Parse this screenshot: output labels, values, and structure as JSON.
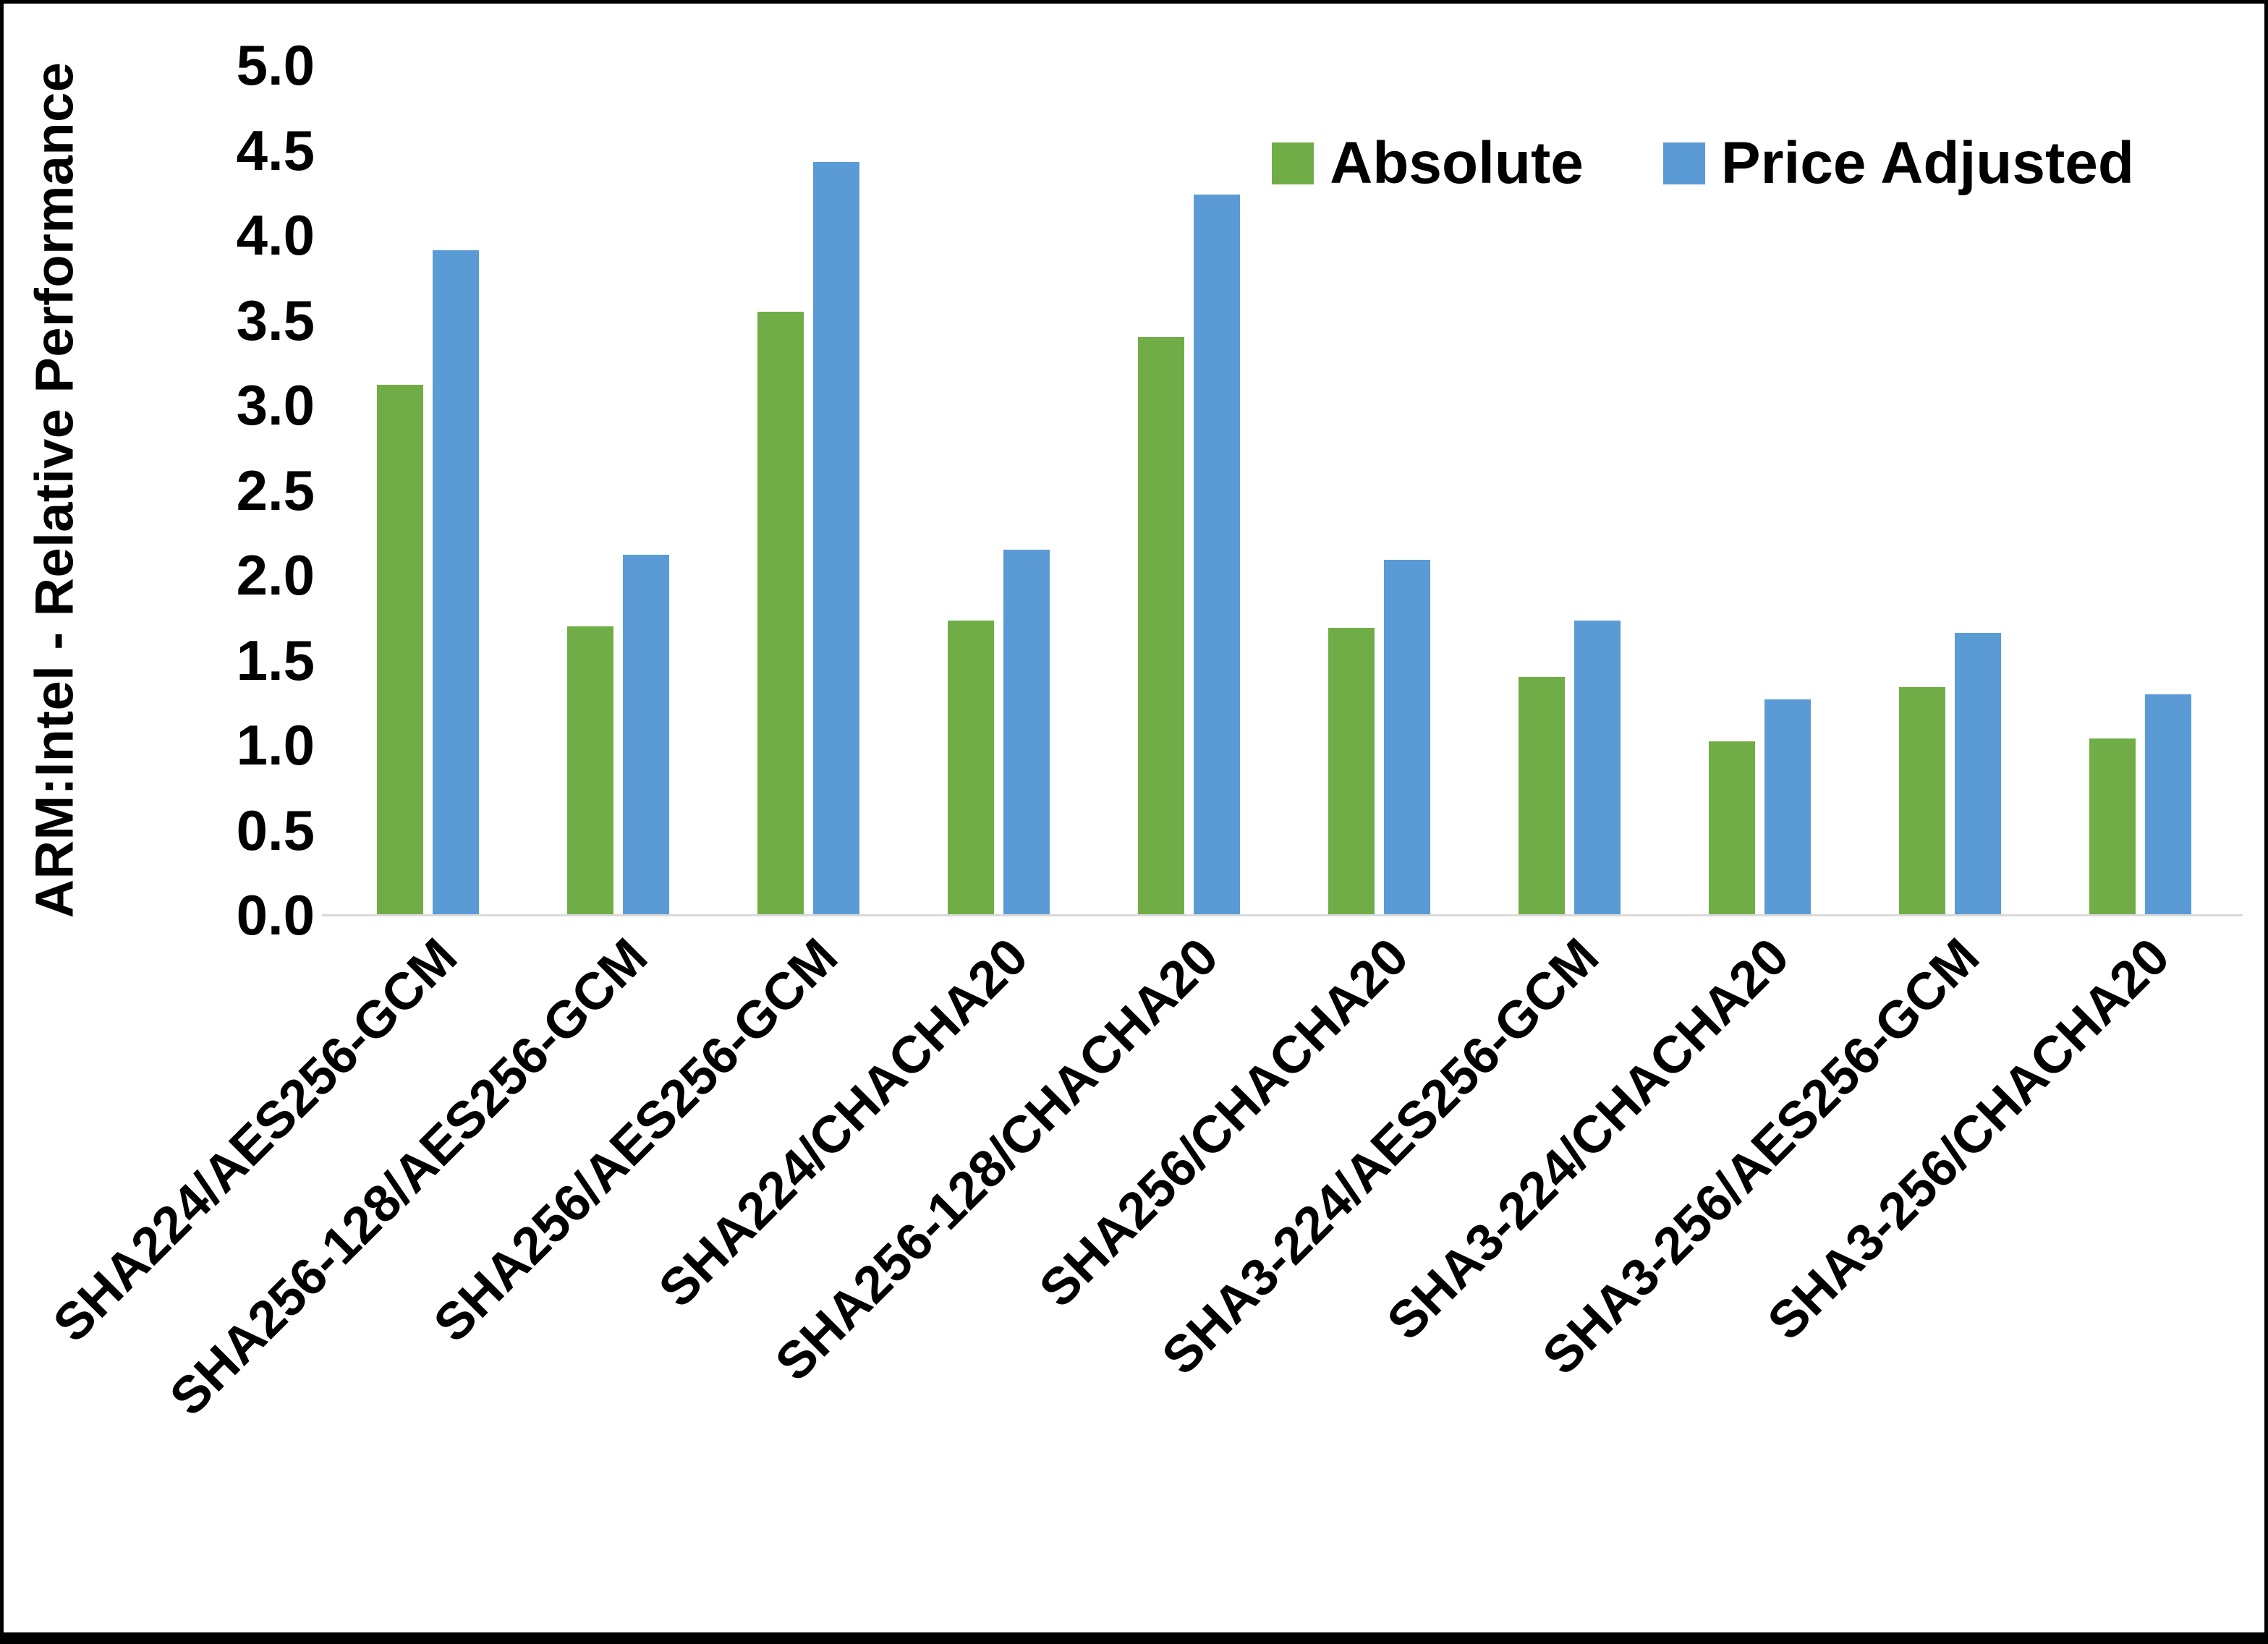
{
  "chart_data": {
    "type": "bar",
    "title": "",
    "xlabel": "",
    "ylabel": "ARM:Intel - Relative Performance",
    "ylim": [
      0,
      5
    ],
    "ytick_step": 0.5,
    "yticks": [
      "0.0",
      "0.5",
      "1.0",
      "1.5",
      "2.0",
      "2.5",
      "3.0",
      "3.5",
      "4.0",
      "4.5",
      "5.0"
    ],
    "grid": false,
    "legend_position": "top-right",
    "categories": [
      "SHA224/AES256-GCM",
      "SHA256-128/AES256-GCM",
      "SHA256/AES256-GCM",
      "SHA224/CHACHA20",
      "SHA256-128/CHACHA20",
      "SHA256/CHACHA20",
      "SHA3-224/AES256-GCM",
      "SHA3-224/CHACHA20",
      "SHA3-256/AES256-GCM",
      "SHA3-256/CHACHA20"
    ],
    "series": [
      {
        "name": "Absolute",
        "color": "#70AD47",
        "values": [
          3.12,
          1.7,
          3.55,
          1.73,
          3.4,
          1.69,
          1.4,
          1.02,
          1.34,
          1.04
        ]
      },
      {
        "name": "Price Adjusted",
        "color": "#5B9BD5",
        "values": [
          3.91,
          2.12,
          4.43,
          2.15,
          4.24,
          2.09,
          1.73,
          1.27,
          1.66,
          1.3
        ]
      }
    ]
  }
}
